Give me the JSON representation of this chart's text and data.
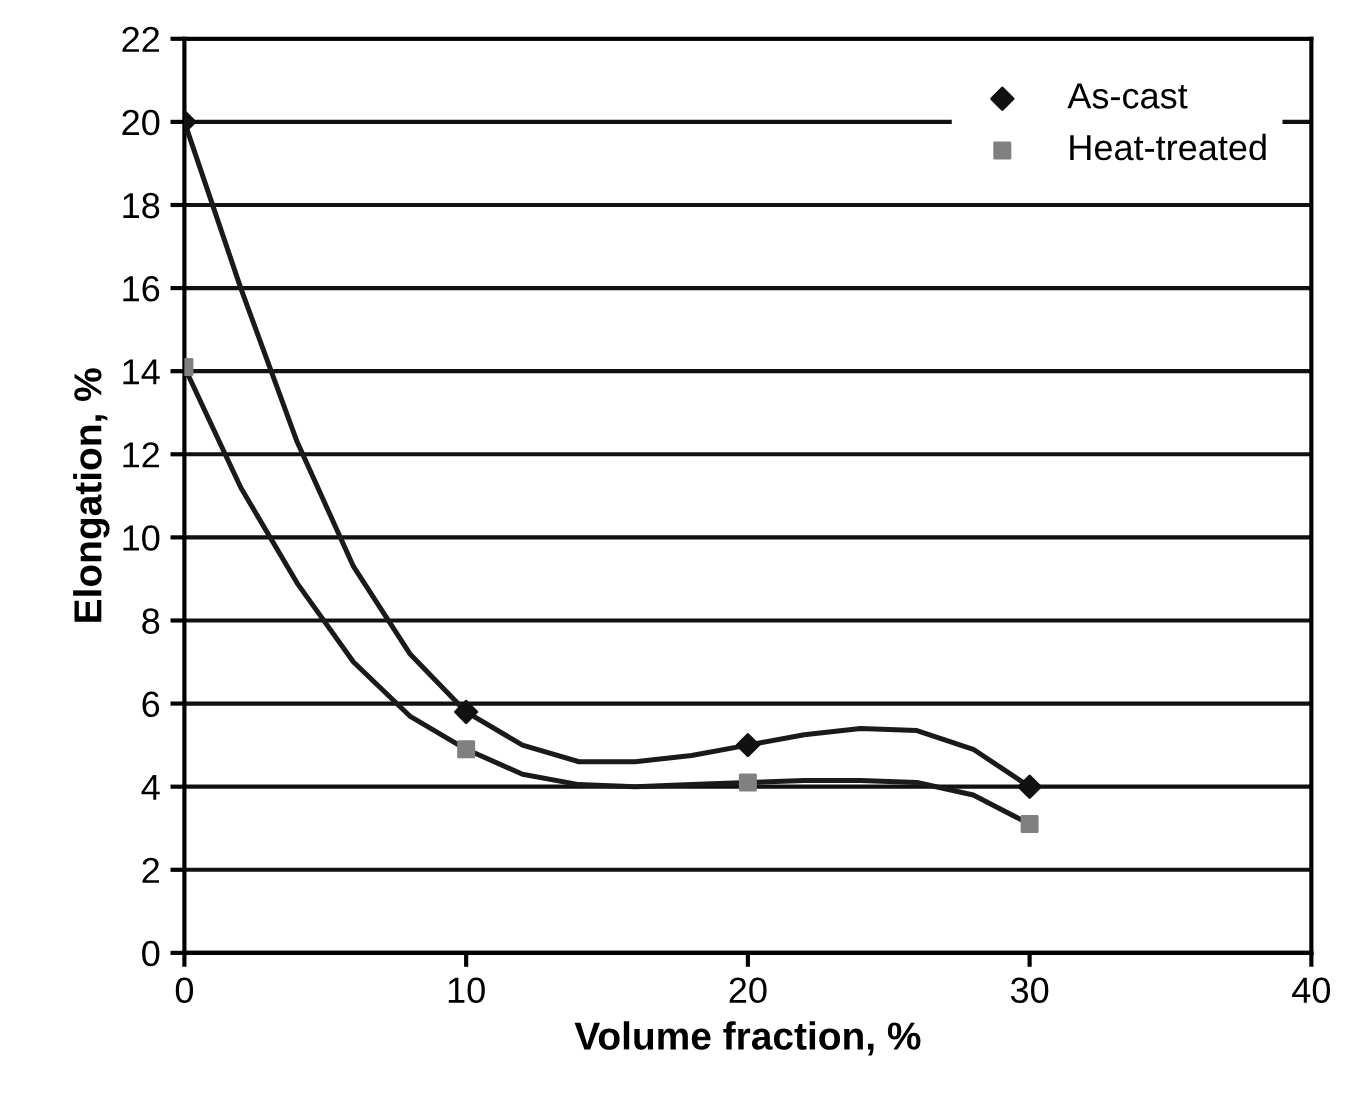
{
  "chart_data": {
    "type": "scatter",
    "xlabel": "Volume fraction, %",
    "ylabel": "Elongation, %",
    "xlim": [
      0,
      40
    ],
    "xticks": [
      0,
      10,
      20,
      30,
      40
    ],
    "ylim": [
      0,
      22
    ],
    "yticks": [
      0,
      2,
      4,
      6,
      8,
      10,
      12,
      14,
      16,
      18,
      20,
      22
    ],
    "grid": "y",
    "legend": "top right",
    "series": [
      {
        "type": "line",
        "color": "#1a1a1a",
        "marker": "none",
        "x": [
          0,
          2,
          4,
          6,
          8,
          10,
          12,
          14,
          16,
          18,
          20,
          22,
          24,
          26,
          28,
          30
        ],
        "values": [
          20,
          16,
          12.3,
          9.3,
          7.2,
          5.8,
          5.0,
          4.6,
          4.6,
          4.75,
          5.0,
          5.25,
          5.4,
          5.35,
          4.9,
          4.0
        ]
      },
      {
        "type": "line",
        "color": "#1a1a1a",
        "marker": "none",
        "x": [
          0,
          2,
          4,
          6,
          8,
          10,
          12,
          14,
          16,
          18,
          20,
          22,
          24,
          26,
          28,
          30
        ],
        "values": [
          14.1,
          11.2,
          8.9,
          7.0,
          5.7,
          4.9,
          4.3,
          4.05,
          4.0,
          4.05,
          4.1,
          4.15,
          4.15,
          4.1,
          3.8,
          3.1
        ]
      },
      {
        "name": "As-cast",
        "color": "#111111",
        "marker": "diamond",
        "x": [
          0,
          10,
          20,
          30
        ],
        "values": [
          20,
          5.8,
          5.0,
          4.0
        ]
      },
      {
        "name": "Heat-treated",
        "color": "#808080",
        "marker": "square",
        "x": [
          0,
          10,
          20,
          30
        ],
        "values": [
          14.1,
          4.9,
          4.1,
          3.1
        ]
      }
    ]
  }
}
